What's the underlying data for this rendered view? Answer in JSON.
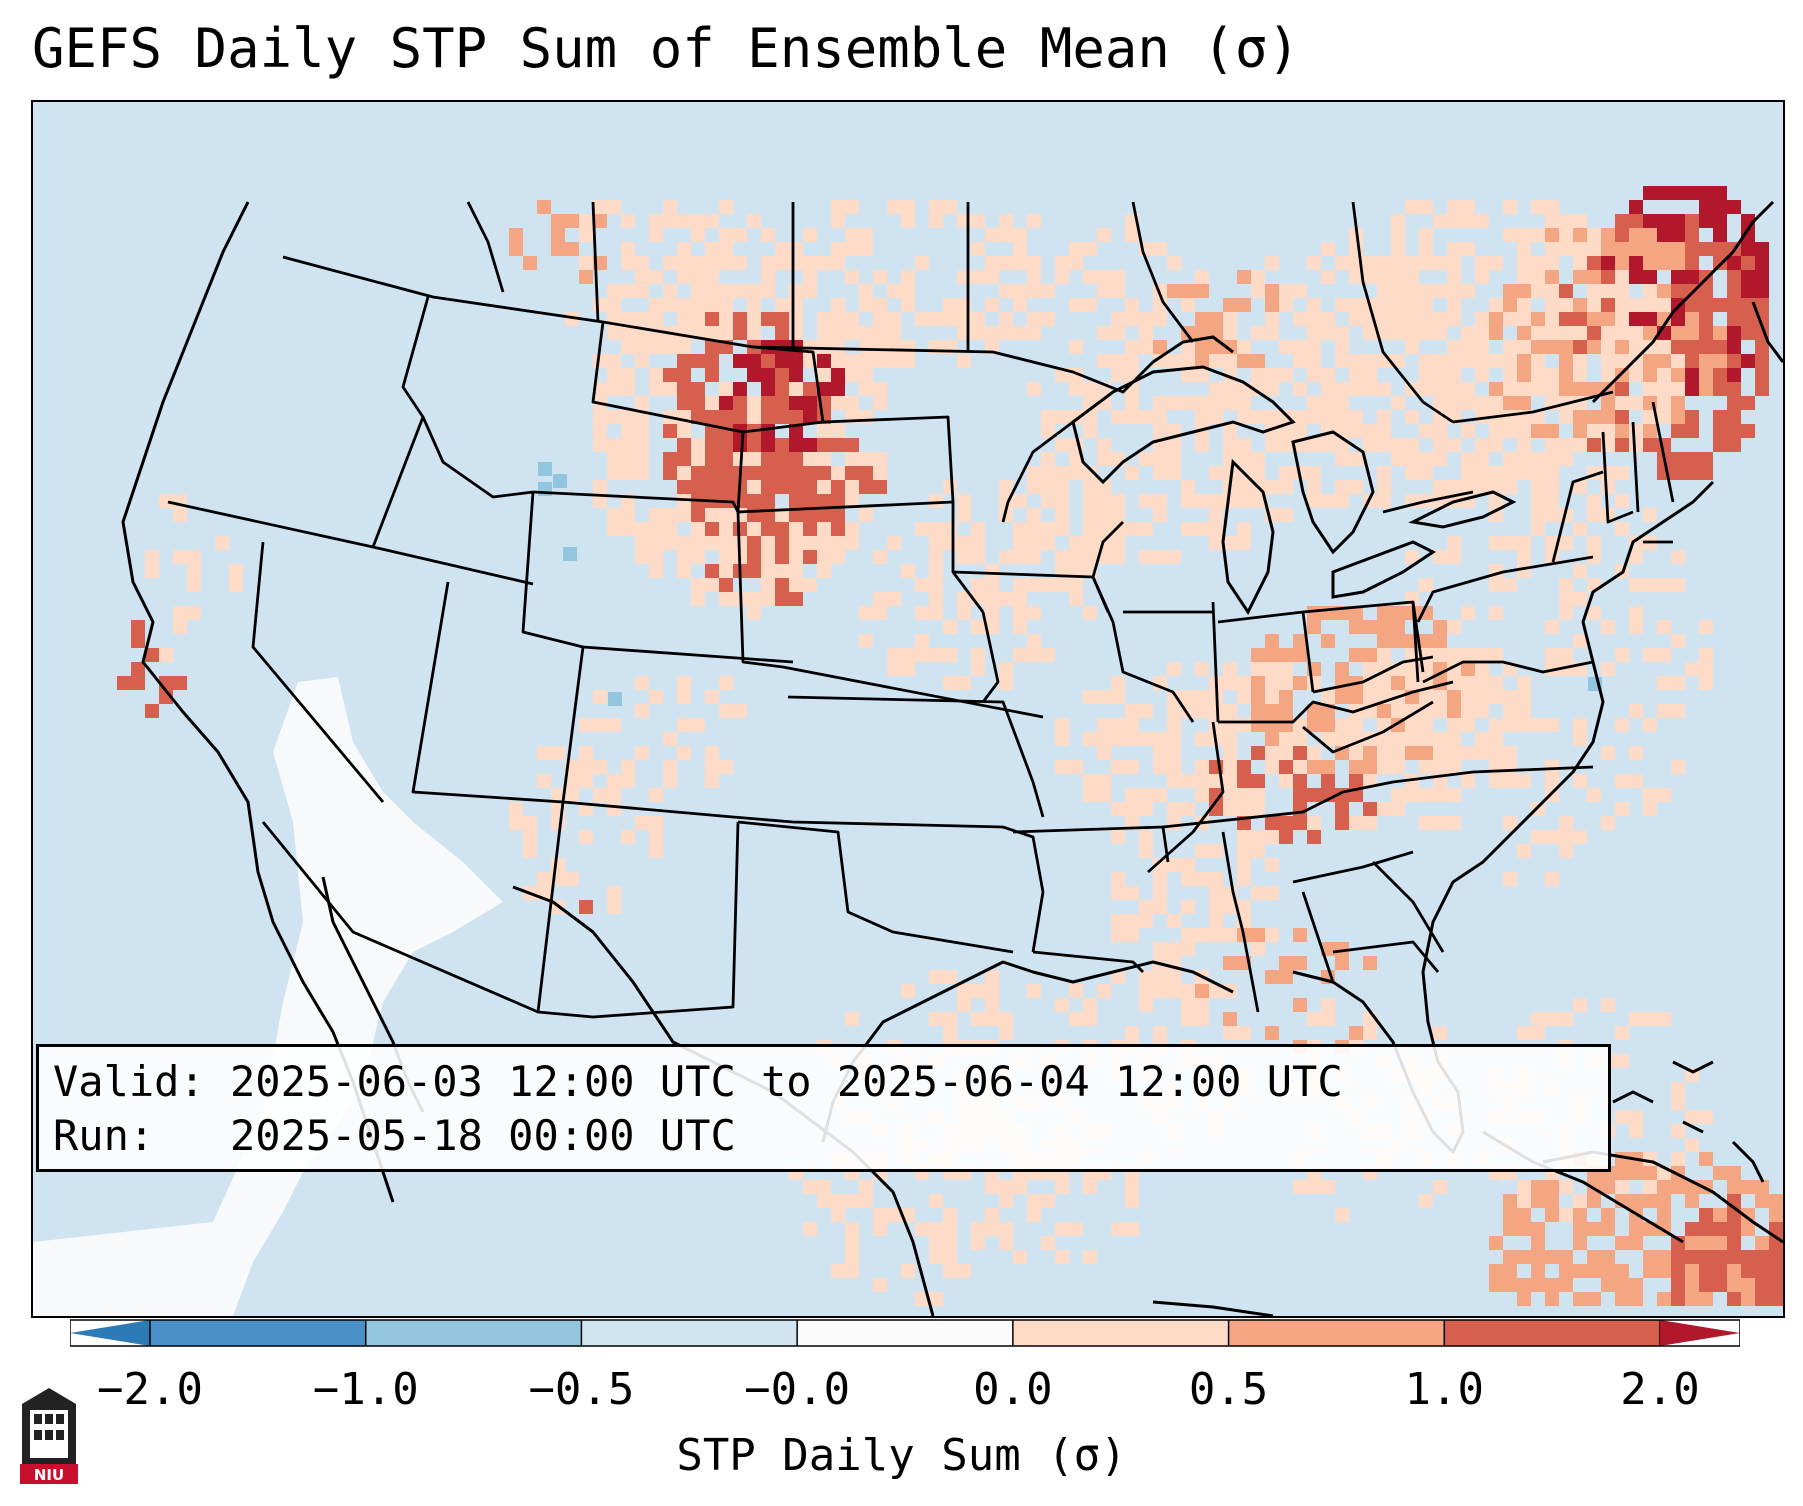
{
  "title": "GEFS Daily STP Sum of Ensemble Mean (σ)",
  "info": {
    "valid_label": "Valid:",
    "valid_value": "2025-06-03 12:00 UTC to 2025-06-04 12:00 UTC",
    "run_label": "Run:",
    "run_value": "2025-05-18 00:00 UTC"
  },
  "colorbar": {
    "label": "STP Daily Sum (σ)",
    "ticks": [
      "−2.0",
      "−1.0",
      "−0.5",
      "−0.0",
      "0.0",
      "0.5",
      "1.0",
      "2.0"
    ],
    "colors": [
      "#2c7bb6",
      "#4a90c8",
      "#92c5de",
      "#d1e5f0",
      "#fbfbfb",
      "#fddbc7",
      "#f4a582",
      "#d6604d",
      "#b2182b"
    ]
  },
  "logo": {
    "text": "NIU",
    "name": "niu-logo-icon"
  },
  "map": {
    "ocean_color": "#cfe3f0",
    "anomaly_regions": [
      {
        "name": "northern-plains",
        "level": "1.0 to 2.0"
      },
      {
        "name": "quebec",
        "level": "> 2.0"
      },
      {
        "name": "ohio-valley",
        "level": "0.5 to 1.0"
      },
      {
        "name": "southwest-mexico",
        "level": "-0.0 to 0.0"
      }
    ]
  }
}
